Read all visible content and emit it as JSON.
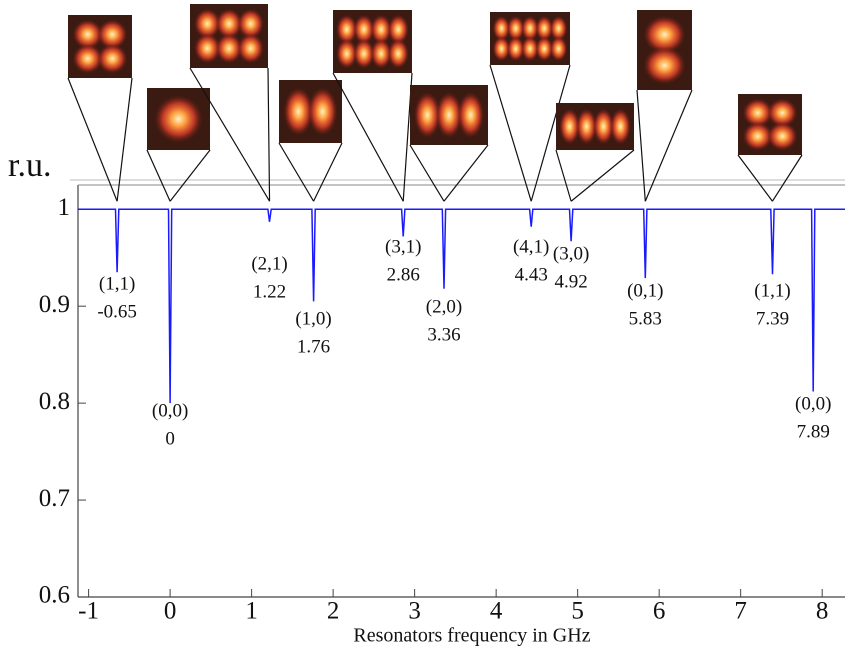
{
  "chart_data": {
    "type": "line",
    "ylabel": "r.u.",
    "xlabel": "Resonators frequency in GHz",
    "xlim": [
      -1.13,
      8.28
    ],
    "ylim": [
      0.6,
      1.025
    ],
    "xticks": [
      -1,
      0,
      1,
      2,
      3,
      4,
      5,
      6,
      7,
      8
    ],
    "yticks": [
      0.6,
      0.7,
      0.8,
      0.9,
      1
    ],
    "series": [
      {
        "color": "#1a1aff",
        "x": [
          -1.13,
          -0.67,
          -0.65,
          -0.63,
          -0.02,
          0,
          0.02,
          1.2,
          1.22,
          1.24,
          1.74,
          1.76,
          1.78,
          2.84,
          2.86,
          2.88,
          3.34,
          3.36,
          3.38,
          4.41,
          4.43,
          4.45,
          4.9,
          4.92,
          4.94,
          5.81,
          5.83,
          5.85,
          7.37,
          7.39,
          7.41,
          7.87,
          7.89,
          7.91,
          8.28
        ],
        "values": [
          1,
          1,
          0.935,
          1,
          1,
          0.8,
          1,
          1,
          0.987,
          1,
          1,
          0.905,
          1,
          1,
          0.972,
          1,
          1,
          0.918,
          1,
          1,
          0.982,
          1,
          1,
          0.967,
          1,
          1,
          0.929,
          1,
          1,
          0.933,
          1,
          1,
          0.812,
          1,
          1
        ]
      }
    ],
    "annotations": [
      {
        "mode": "(1,1)",
        "freq": -0.65
      },
      {
        "mode": "(0,0)",
        "freq": 0
      },
      {
        "mode": "(2,1)",
        "freq": 1.22
      },
      {
        "mode": "(1,0)",
        "freq": 1.76
      },
      {
        "mode": "(3,1)",
        "freq": 2.86
      },
      {
        "mode": "(2,0)",
        "freq": 3.36
      },
      {
        "mode": "(4,1)",
        "freq": 4.43
      },
      {
        "mode": "(3,0)",
        "freq": 4.92
      },
      {
        "mode": "(0,1)",
        "freq": 5.83
      },
      {
        "mode": "(1,1)",
        "freq": 7.39
      },
      {
        "mode": "(0,0)",
        "freq": 7.89
      }
    ]
  }
}
